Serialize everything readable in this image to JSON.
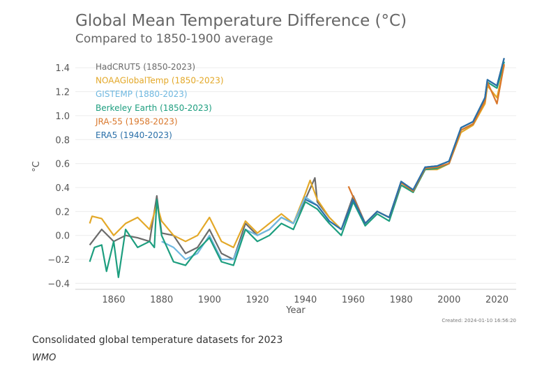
{
  "chart_data": {
    "type": "line",
    "title": "Global Mean Temperature Difference (°C)",
    "subtitle": "Compared to 1850-1900 average",
    "xlabel": "Year",
    "ylabel": "°C",
    "xlim": [
      1844,
      2028
    ],
    "ylim": [
      -0.45,
      1.5
    ],
    "xticks": [
      1860,
      1880,
      1900,
      1920,
      1940,
      1960,
      1980,
      2000,
      2020
    ],
    "yticks": [
      -0.4,
      -0.2,
      0.0,
      0.2,
      0.4,
      0.6,
      0.8,
      1.0,
      1.2,
      1.4
    ],
    "ytick_labels": [
      "−0.4",
      "−0.2",
      "0.0",
      "0.2",
      "0.4",
      "0.6",
      "0.8",
      "1.0",
      "1.2",
      "1.4"
    ],
    "grid": "horizontal",
    "legend_position": "top-left",
    "created": "Created: 2024-01-10 16:56:20",
    "series": [
      {
        "name": "HadCRUT5 (1850-2023)",
        "color": "#6b6b6b",
        "x": [
          1850,
          1855,
          1860,
          1865,
          1870,
          1875,
          1878,
          1880,
          1885,
          1890,
          1895,
          1900,
          1905,
          1910,
          1915,
          1920,
          1925,
          1930,
          1935,
          1940,
          1944,
          1945,
          1950,
          1955,
          1960,
          1965,
          1970,
          1975,
          1980,
          1985,
          1990,
          1995,
          2000,
          2005,
          2010,
          2015,
          2016,
          2020,
          2023
        ],
        "y": [
          -0.08,
          0.05,
          -0.05,
          0.0,
          -0.02,
          -0.05,
          0.33,
          0.02,
          0.0,
          -0.15,
          -0.1,
          0.05,
          -0.15,
          -0.2,
          0.1,
          0.0,
          0.05,
          0.15,
          0.1,
          0.3,
          0.48,
          0.28,
          0.15,
          0.05,
          0.33,
          0.1,
          0.2,
          0.15,
          0.45,
          0.38,
          0.57,
          0.58,
          0.62,
          0.9,
          0.95,
          1.15,
          1.3,
          1.25,
          1.48
        ]
      },
      {
        "name": "NOAAGlobalTemp (1850-2023)",
        "color": "#e3a828",
        "x": [
          1850,
          1851,
          1855,
          1860,
          1865,
          1870,
          1875,
          1878,
          1880,
          1885,
          1890,
          1895,
          1900,
          1905,
          1910,
          1915,
          1920,
          1925,
          1930,
          1935,
          1940,
          1942,
          1945,
          1950,
          1955,
          1960,
          1965,
          1970,
          1975,
          1980,
          1985,
          1990,
          1995,
          2000,
          2005,
          2010,
          2015,
          2016,
          2020,
          2023
        ],
        "y": [
          0.1,
          0.16,
          0.14,
          0.0,
          0.1,
          0.15,
          0.05,
          0.26,
          0.12,
          0.0,
          -0.05,
          0.0,
          0.15,
          -0.05,
          -0.1,
          0.12,
          0.02,
          0.1,
          0.18,
          0.1,
          0.35,
          0.46,
          0.3,
          0.15,
          0.05,
          0.3,
          0.1,
          0.2,
          0.15,
          0.42,
          0.36,
          0.55,
          0.55,
          0.6,
          0.86,
          0.92,
          1.1,
          1.25,
          1.15,
          1.42
        ]
      },
      {
        "name": "GISTEMP (1880-2023)",
        "color": "#6fb8e0",
        "x": [
          1880,
          1885,
          1890,
          1895,
          1900,
          1905,
          1910,
          1915,
          1920,
          1925,
          1930,
          1935,
          1940,
          1945,
          1950,
          1955,
          1960,
          1965,
          1970,
          1975,
          1980,
          1985,
          1990,
          1995,
          2000,
          2005,
          2010,
          2015,
          2016,
          2020,
          2023
        ],
        "y": [
          -0.05,
          -0.1,
          -0.2,
          -0.15,
          0.0,
          -0.2,
          -0.2,
          0.05,
          0.0,
          0.05,
          0.15,
          0.1,
          0.32,
          0.25,
          0.12,
          0.05,
          0.3,
          0.1,
          0.2,
          0.15,
          0.45,
          0.38,
          0.57,
          0.58,
          0.62,
          0.9,
          0.95,
          1.15,
          1.3,
          1.25,
          1.45
        ]
      },
      {
        "name": "Berkeley Earth (1850-2023)",
        "color": "#1d9e7f",
        "x": [
          1850,
          1852,
          1855,
          1857,
          1860,
          1862,
          1865,
          1870,
          1875,
          1877,
          1878,
          1880,
          1885,
          1890,
          1895,
          1900,
          1905,
          1910,
          1915,
          1920,
          1925,
          1930,
          1935,
          1940,
          1945,
          1950,
          1955,
          1960,
          1965,
          1970,
          1975,
          1980,
          1985,
          1990,
          1995,
          2000,
          2005,
          2010,
          2015,
          2016,
          2020,
          2023
        ],
        "y": [
          -0.22,
          -0.1,
          -0.08,
          -0.3,
          -0.05,
          -0.35,
          0.05,
          -0.1,
          -0.05,
          -0.1,
          0.3,
          0.0,
          -0.22,
          -0.25,
          -0.12,
          -0.02,
          -0.22,
          -0.25,
          0.05,
          -0.05,
          0.0,
          0.1,
          0.05,
          0.28,
          0.22,
          0.1,
          0.0,
          0.28,
          0.08,
          0.18,
          0.12,
          0.42,
          0.36,
          0.55,
          0.56,
          0.6,
          0.88,
          0.93,
          1.13,
          1.28,
          1.23,
          1.45
        ]
      },
      {
        "name": "JRA-55 (1958-2023)",
        "color": "#d9772b",
        "x": [
          1958,
          1960,
          1965,
          1970,
          1975,
          1980,
          1985,
          1990,
          1995,
          2000,
          2005,
          2010,
          2015,
          2016,
          2020,
          2023
        ],
        "y": [
          0.41,
          0.32,
          0.1,
          0.2,
          0.15,
          0.44,
          0.37,
          0.56,
          0.57,
          0.6,
          0.88,
          0.93,
          1.12,
          1.28,
          1.1,
          1.43
        ]
      },
      {
        "name": "ERA5 (1940-2023)",
        "color": "#2a6fa8",
        "x": [
          1940,
          1945,
          1950,
          1955,
          1960,
          1965,
          1970,
          1975,
          1980,
          1985,
          1990,
          1995,
          2000,
          2005,
          2010,
          2015,
          2016,
          2020,
          2023
        ],
        "y": [
          0.3,
          0.25,
          0.12,
          0.05,
          0.3,
          0.1,
          0.2,
          0.15,
          0.45,
          0.38,
          0.57,
          0.58,
          0.62,
          0.9,
          0.95,
          1.15,
          1.3,
          1.25,
          1.48
        ]
      }
    ]
  },
  "caption": "Consolidated global temperature datasets for 2023",
  "credit": "WMO"
}
